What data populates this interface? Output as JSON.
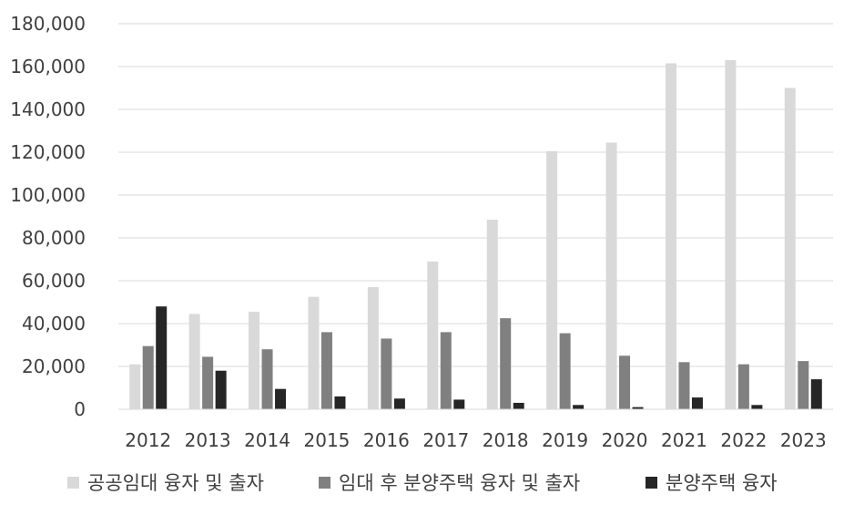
{
  "chart_data": {
    "type": "bar",
    "title": "",
    "xlabel": "",
    "ylabel": "",
    "ylim": [
      0,
      180000
    ],
    "yticks": [
      0,
      20000,
      40000,
      60000,
      80000,
      100000,
      120000,
      140000,
      160000,
      180000
    ],
    "ytick_labels": [
      "0",
      "20,000",
      "40,000",
      "60,000",
      "80,000",
      "100,000",
      "120,000",
      "140,000",
      "160,000",
      "180,000"
    ],
    "grid": true,
    "legend_position": "bottom",
    "categories": [
      "2012",
      "2013",
      "2014",
      "2015",
      "2016",
      "2017",
      "2018",
      "2019",
      "2020",
      "2021",
      "2022",
      "2023"
    ],
    "series": [
      {
        "name": "공공임대 융자 및 출자",
        "color": "#d9d9d9",
        "values": [
          21000,
          44500,
          45500,
          52500,
          57000,
          69000,
          88500,
          120500,
          124500,
          161500,
          163000,
          150000
        ]
      },
      {
        "name": "임대 후 분양주택 융자 및 출자",
        "color": "#808080",
        "values": [
          29500,
          24500,
          28000,
          36000,
          33000,
          36000,
          42500,
          35500,
          25000,
          22000,
          21000,
          22500
        ]
      },
      {
        "name": "분양주택 융자",
        "color": "#262626",
        "values": [
          48000,
          18000,
          9500,
          6000,
          5000,
          4500,
          3000,
          2000,
          1000,
          5500,
          2000,
          14000
        ]
      }
    ]
  }
}
